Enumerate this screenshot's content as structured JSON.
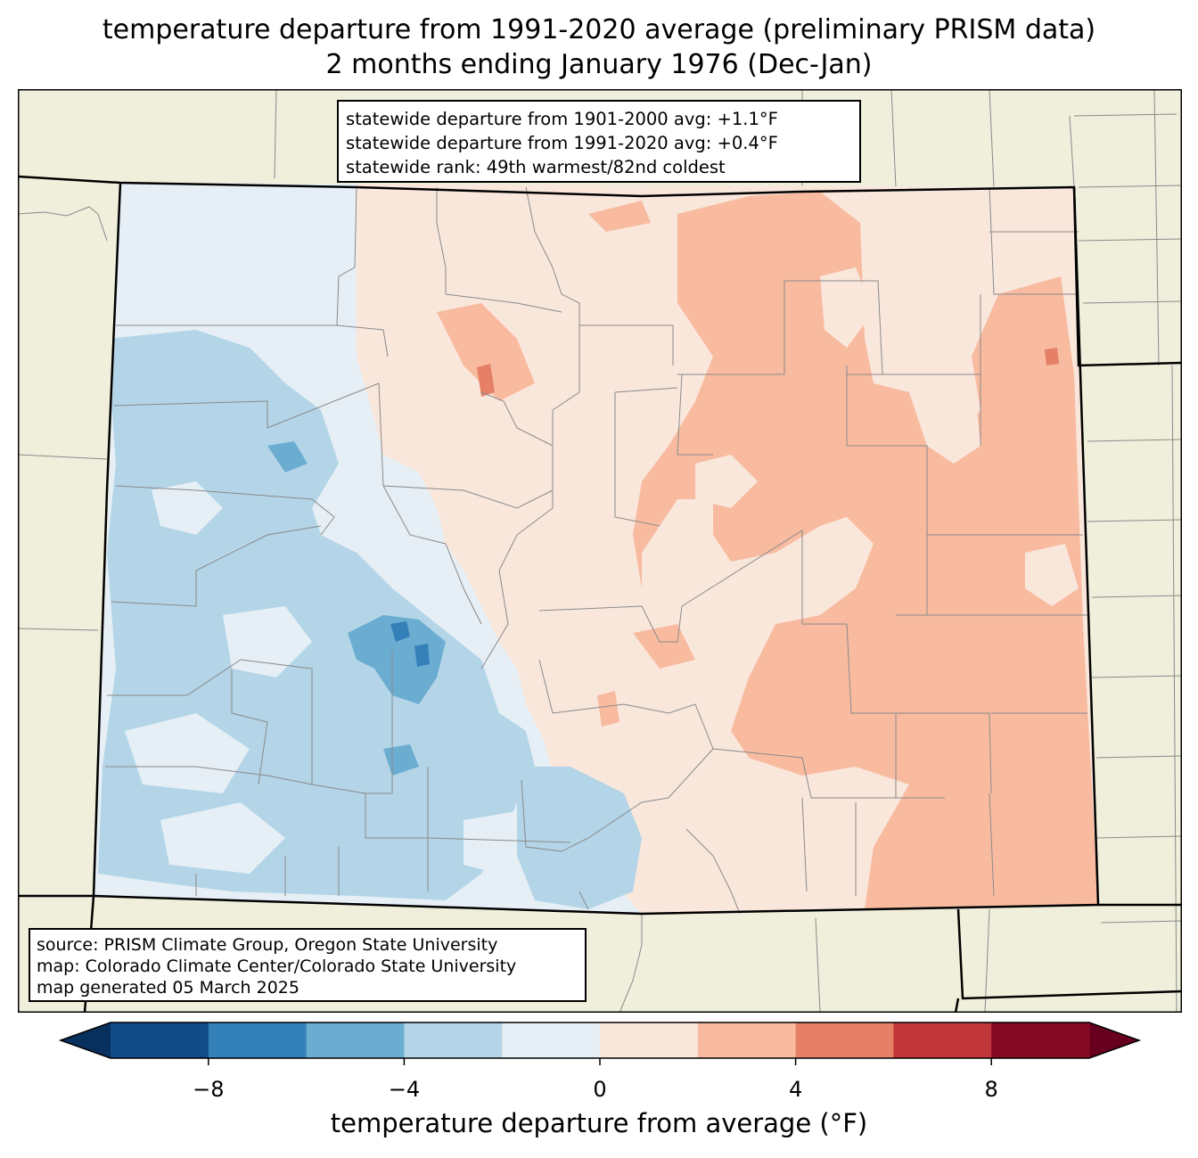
{
  "title": {
    "line1": "temperature departure from 1991-2020 average (preliminary PRISM data)",
    "line2": "2 months ending January 1976 (Dec-Jan)"
  },
  "stats": {
    "line1": "statewide departure from 1901-2000 avg: +1.1°F",
    "line2": "statewide departure from 1991-2020 avg: +0.4°F",
    "line3": "statewide rank: 49th warmest/82nd coldest"
  },
  "source": {
    "line1": "source: PRISM Climate Group, Oregon State University",
    "line2": "map: Colorado Climate Center/Colorado State University",
    "line3": "map generated 05 March 2025"
  },
  "colorbar": {
    "label": "temperature departure from average (°F)",
    "min": -10,
    "max": 10,
    "bounds": [
      -10,
      -8,
      -6,
      -4,
      -2,
      0,
      2,
      4,
      6,
      8,
      10
    ],
    "colors": [
      "#134b87",
      "#3480b9",
      "#6bacd1",
      "#b3d5e7",
      "#e5eff5",
      "#fae7dc",
      "#f8bba0",
      "#e58066",
      "#c13639",
      "#870a24"
    ],
    "under_color": "#08305f",
    "over_color": "#67001f",
    "ticks": [
      -8,
      -4,
      0,
      4,
      8
    ],
    "tick_labels": [
      "−8",
      "−4",
      "0",
      "4",
      "8"
    ]
  },
  "map_colors": {
    "land": "#f0efdc",
    "county_line": "#8a8a8a",
    "state_line": "#000000"
  }
}
